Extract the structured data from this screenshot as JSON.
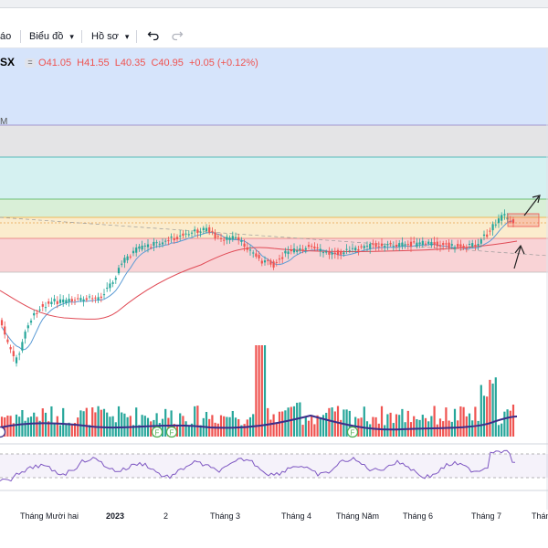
{
  "toolbar": {
    "alerts_label": "áo",
    "chart_label": "Biểu đồ",
    "profile_label": "Hồ sơ"
  },
  "legend": {
    "symbol": "SX",
    "open": "O41.05",
    "high": "H41.55",
    "low": "L40.35",
    "close": "C40.95",
    "change": "+0.05 (+0.12%)"
  },
  "side_label": "M",
  "markers": [
    "F",
    "F",
    "F"
  ],
  "time_axis": [
    "Tháng Mười hai",
    "2023",
    "2",
    "Tháng 3",
    "Tháng 4",
    "Tháng Năm",
    "Tháng 6",
    "Tháng 7",
    "Tháng"
  ],
  "colors": {
    "up": "#26a69a",
    "down": "#ef5350",
    "ma_short": "#5b9bd5",
    "ma_long": "#e04a55",
    "volume_ma": "#3b2e8a",
    "rsi": "#7e57c2",
    "zone_blue": "#d6e4fb",
    "zone_gray": "#e4e4e6",
    "zone_cyan": "#d5f1f1",
    "zone_green": "#d9efd7",
    "zone_yellow": "#fbeccd",
    "zone_red": "#f9d3d6"
  },
  "chart_data": {
    "type": "candlestick",
    "price": {
      "open": 41.05,
      "high": 41.55,
      "low": 40.35,
      "close": 40.95,
      "change": 0.05,
      "change_pct": 0.12
    },
    "x_labels": [
      "Tháng Mười hai",
      "2023",
      "2",
      "Tháng 3",
      "Tháng 4",
      "Tháng Năm",
      "Tháng 6",
      "Tháng 7",
      "Tháng"
    ],
    "indicators": [
      "MA short",
      "MA long",
      "Volume",
      "Volume MA",
      "RSI"
    ]
  }
}
